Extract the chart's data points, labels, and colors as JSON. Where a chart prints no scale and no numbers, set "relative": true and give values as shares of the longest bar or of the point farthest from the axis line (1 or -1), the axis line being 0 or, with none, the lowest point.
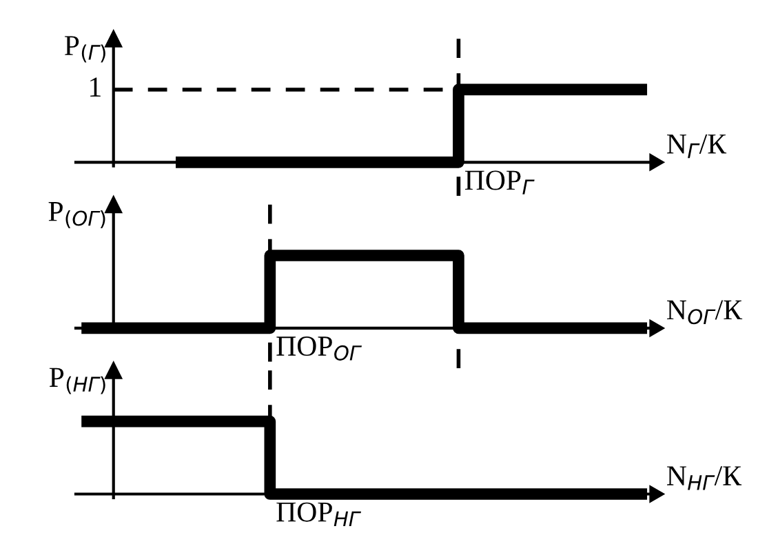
{
  "chart_data": [
    {
      "type": "step",
      "ylabel": "P$_{(Г)}$",
      "xlabel": "N$_{Г}$/К",
      "relative": true,
      "grid": false,
      "legend": false,
      "categories": [
        null,
        null,
        null,
        null,
        null,
        null,
        null
      ],
      "series": [
        {
          "color": "#000000",
          "values": [
            null,
            0,
            0,
            0,
            1,
            1,
            1
          ]
        }
      ],
      "annotations": [
        "ПОР$_{Г}$"
      ],
      "ref_lines": [
        {
          "axis": "y",
          "value": 1,
          "label": "1",
          "line_style": "dashed",
          "color": "#000000"
        }
      ]
    },
    {
      "type": "step",
      "ylabel": "P$_{(ОГ)}$",
      "xlabel": "N$_{ОГ}$/К",
      "relative": true,
      "grid": false,
      "legend": false,
      "categories": [
        null,
        null,
        null,
        null,
        null,
        null,
        null
      ],
      "series": [
        {
          "color": "#000000",
          "values": [
            0,
            0,
            1,
            1,
            0,
            0,
            0
          ]
        }
      ],
      "annotations": [
        "ПОР$_{ОГ}$"
      ]
    },
    {
      "type": "step",
      "ylabel": "P$_{(НГ)}$",
      "xlabel": "N$_{НГ}$/К",
      "relative": true,
      "grid": false,
      "legend": false,
      "categories": [
        null,
        null,
        null,
        null,
        null,
        null,
        null
      ],
      "series": [
        {
          "color": "#000000",
          "values": [
            1,
            1,
            0,
            0,
            0,
            0,
            0
          ]
        }
      ],
      "annotations": [
        "ПОР$_{НГ}$"
      ]
    }
  ]
}
